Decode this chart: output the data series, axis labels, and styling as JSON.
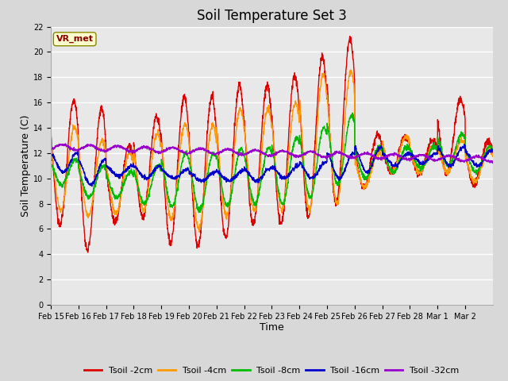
{
  "title": "Soil Temperature Set 3",
  "xlabel": "Time",
  "ylabel": "Soil Temperature (C)",
  "ylim": [
    0,
    22
  ],
  "yticks": [
    0,
    2,
    4,
    6,
    8,
    10,
    12,
    14,
    16,
    18,
    20,
    22
  ],
  "colors": {
    "Tsoil -2cm": "#dd0000",
    "Tsoil -4cm": "#ff9900",
    "Tsoil -8cm": "#00bb00",
    "Tsoil -16cm": "#0000cc",
    "Tsoil -32cm": "#9900cc"
  },
  "annotation_text": "VR_met",
  "annotation_color": "#880000",
  "annotation_bg": "#ffffcc",
  "fig_bg_color": "#d8d8d8",
  "plot_bg_color": "#e8e8e8",
  "grid_color": "#ffffff",
  "title_fontsize": 12,
  "axis_label_fontsize": 9,
  "tick_fontsize": 7,
  "legend_fontsize": 8,
  "line_width": 1.0,
  "tick_labels": [
    "Feb 15",
    "Feb 16",
    "Feb 17",
    "Feb 18",
    "Feb 19",
    "Feb 20",
    "Feb 21",
    "Feb 22",
    "Feb 23",
    "Feb 24",
    "Feb 25",
    "Feb 26",
    "Feb 27",
    "Feb 28",
    "Mar 1",
    "Mar 2"
  ],
  "n_days": 16
}
